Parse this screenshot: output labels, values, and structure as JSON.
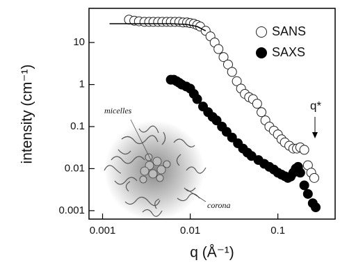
{
  "chart_data": {
    "type": "scatter",
    "xlabel": "q (Å⁻¹)",
    "ylabel": "intensity (cm⁻¹)",
    "xscale": "log",
    "yscale": "log",
    "xlim": [
      0.0007,
      0.45
    ],
    "ylim": [
      0.00063,
      65
    ],
    "xticks": [
      0.001,
      0.01,
      0.1
    ],
    "yticks": [
      0.001,
      0.01,
      0.1,
      1,
      10
    ],
    "legend": "upper right",
    "annotations": [
      "micelles",
      "corona",
      "q*"
    ],
    "series": [
      {
        "name": "SANS",
        "marker": "open",
        "color": "#222222",
        "x": [
          0.002,
          0.0023,
          0.0026,
          0.003,
          0.0034,
          0.0038,
          0.0043,
          0.0048,
          0.0054,
          0.006,
          0.0067,
          0.0075,
          0.0083,
          0.0092,
          0.01,
          0.011,
          0.012,
          0.013,
          0.015,
          0.017,
          0.019,
          0.021,
          0.024,
          0.027,
          0.03,
          0.034,
          0.038,
          0.042,
          0.047,
          0.052,
          0.058,
          0.065,
          0.072,
          0.08,
          0.09,
          0.1,
          0.11,
          0.12,
          0.135,
          0.15,
          0.165,
          0.18,
          0.2,
          0.22,
          0.24,
          0.26
        ],
        "values": [
          35,
          33,
          32,
          31,
          31,
          31,
          31,
          31,
          31,
          31,
          31,
          31,
          30,
          30,
          29,
          28,
          26,
          24,
          19,
          14,
          10,
          7,
          4.5,
          3,
          2,
          1.2,
          0.8,
          0.6,
          0.5,
          0.45,
          0.35,
          0.22,
          0.14,
          0.1,
          0.08,
          0.065,
          0.05,
          0.042,
          0.035,
          0.03,
          0.03,
          0.032,
          0.028,
          0.012,
          0.008,
          0.006
        ]
      },
      {
        "name": "SAXS",
        "marker": "filled",
        "color": "#000000",
        "x": [
          0.006,
          0.0065,
          0.007,
          0.0075,
          0.008,
          0.009,
          0.01,
          0.011,
          0.012,
          0.014,
          0.016,
          0.018,
          0.02,
          0.023,
          0.026,
          0.03,
          0.035,
          0.04,
          0.045,
          0.05,
          0.06,
          0.07,
          0.08,
          0.09,
          0.1,
          0.11,
          0.12,
          0.13,
          0.14,
          0.15,
          0.16,
          0.17,
          0.18,
          0.2,
          0.22,
          0.25,
          0.27
        ],
        "values": [
          1.3,
          1.3,
          1.2,
          1.1,
          1.0,
          0.9,
          0.8,
          0.6,
          0.45,
          0.3,
          0.22,
          0.17,
          0.14,
          0.1,
          0.075,
          0.055,
          0.04,
          0.03,
          0.024,
          0.02,
          0.016,
          0.013,
          0.011,
          0.0095,
          0.008,
          0.0072,
          0.0066,
          0.006,
          0.0065,
          0.008,
          0.01,
          0.011,
          0.008,
          0.004,
          0.0025,
          0.0015,
          0.0012
        ]
      },
      {
        "type": "line",
        "color": "#000000",
        "x": [
          0.0012,
          0.003,
          0.006,
          0.009,
          0.012,
          0.015
        ],
        "values": [
          28,
          28,
          28,
          27,
          24,
          19
        ]
      }
    ]
  }
}
